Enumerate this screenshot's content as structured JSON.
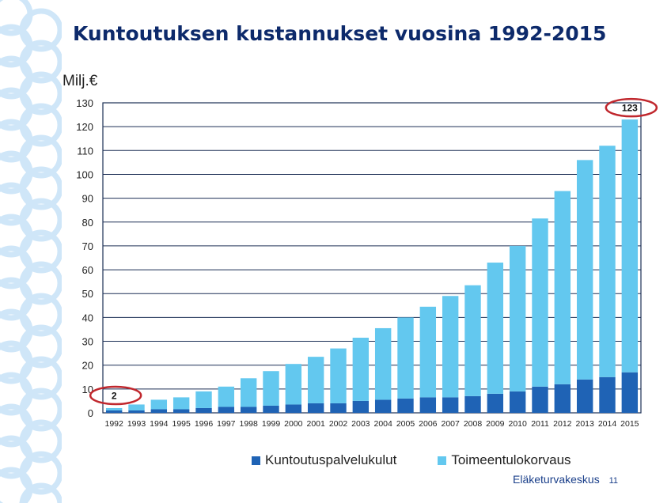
{
  "slide": {
    "title": "Kuntoutuksen kustannukset vuosina 1992-2015",
    "footer_org": "Eläketurvakeskus",
    "page_number": "11",
    "colors": {
      "title": "#0d2a6b",
      "decoration": "#cfe6f8",
      "highlight": "#c0272d"
    }
  },
  "chart_data": {
    "type": "bar",
    "stacked": true,
    "ylabel": "Milj.€",
    "ylim": [
      0,
      130
    ],
    "ytick_step": 10,
    "grid": true,
    "legend_position": "bottom",
    "categories": [
      "1992",
      "1993",
      "1994",
      "1995",
      "1996",
      "1997",
      "1998",
      "1999",
      "2000",
      "2001",
      "2002",
      "2003",
      "2004",
      "2005",
      "2006",
      "2007",
      "2008",
      "2009",
      "2010",
      "2011",
      "2012",
      "2013",
      "2014",
      "2015"
    ],
    "series": [
      {
        "name": "Kuntoutuspalvelukulut",
        "color": "#1f63b5",
        "values": [
          1,
          1,
          1.5,
          1.5,
          2,
          2.5,
          2.5,
          3,
          3.5,
          4,
          4,
          5,
          5.5,
          6,
          6.5,
          6.5,
          7,
          8,
          9,
          11,
          12,
          14,
          15,
          17
        ]
      },
      {
        "name": "Toimeentulokorvaus",
        "color": "#63c8ef",
        "values": [
          1,
          2.5,
          4,
          5,
          7,
          8.5,
          12,
          14.5,
          17,
          19.5,
          23,
          26.5,
          30,
          34,
          38,
          42.5,
          46.5,
          55,
          61,
          70.5,
          81,
          92,
          97,
          106
        ]
      }
    ],
    "annotations": [
      {
        "category": "1992",
        "label": "2"
      },
      {
        "category": "2015",
        "label": "123"
      }
    ]
  }
}
